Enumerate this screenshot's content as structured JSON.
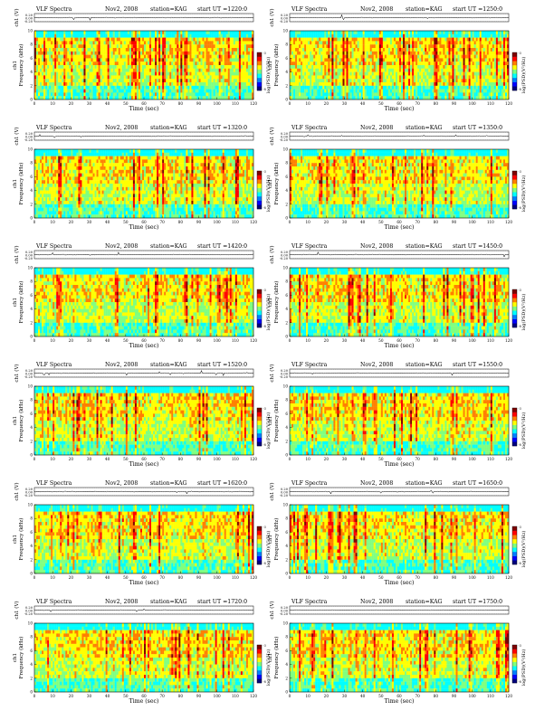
{
  "page": {
    "background": "#ffffff"
  },
  "labels": {
    "title": "VLF Spectra",
    "date": "Nov2, 2008",
    "station": "station=KAG",
    "start_prefix": "start  UT  =",
    "ch_label": "ch1 (V)",
    "freq_label": "Frequency  (kHz)",
    "ch_tag": "ch1",
    "xlabel": "Time  (sec)",
    "cbar_label": "log(PSD)(V²/Hz)",
    "cbar_top_tick": "-3",
    "cbar_bottom_tick": "-8"
  },
  "colors": {
    "spectro_scale": [
      "#00007f",
      "#0000ff",
      "#007fff",
      "#00ffff",
      "#7fff7f",
      "#ffff00",
      "#ff7f00",
      "#ff0000",
      "#7f0000"
    ],
    "text": "#000000",
    "trace": "#000000"
  },
  "chart_data": [
    {
      "type": "heatmap",
      "start_ut": "1220:0",
      "x_ticks": [
        "0",
        "10",
        "20",
        "30",
        "40",
        "50",
        "60",
        "70",
        "80",
        "90",
        "100",
        "110",
        "120"
      ],
      "y_ticks": [
        "0",
        "2",
        "4",
        "6",
        "8",
        "10"
      ],
      "top_ticks": [
        "0.20",
        "0.00",
        "-0.20"
      ],
      "xlim": [
        0,
        120
      ],
      "ylim": [
        0,
        10
      ]
    },
    {
      "type": "heatmap",
      "start_ut": "1250:0",
      "x_ticks": [
        "0",
        "10",
        "20",
        "30",
        "40",
        "50",
        "60",
        "70",
        "80",
        "90",
        "100",
        "110",
        "120"
      ],
      "y_ticks": [
        "0",
        "2",
        "4",
        "6",
        "8",
        "10"
      ],
      "top_ticks": [
        "0.20",
        "0.00",
        "-0.20"
      ],
      "xlim": [
        0,
        120
      ],
      "ylim": [
        0,
        10
      ]
    },
    {
      "type": "heatmap",
      "start_ut": "1320:0",
      "x_ticks": [
        "0",
        "10",
        "20",
        "30",
        "40",
        "50",
        "60",
        "70",
        "80",
        "90",
        "100",
        "110",
        "120"
      ],
      "y_ticks": [
        "0",
        "2",
        "4",
        "6",
        "8",
        "10"
      ],
      "top_ticks": [
        "0.20",
        "0.00",
        "-0.20"
      ],
      "xlim": [
        0,
        120
      ],
      "ylim": [
        0,
        10
      ]
    },
    {
      "type": "heatmap",
      "start_ut": "1350:0",
      "x_ticks": [
        "0",
        "10",
        "20",
        "30",
        "40",
        "50",
        "60",
        "70",
        "80",
        "90",
        "100",
        "110",
        "120"
      ],
      "y_ticks": [
        "0",
        "2",
        "4",
        "6",
        "8",
        "10"
      ],
      "top_ticks": [
        "0.20",
        "0.00",
        "-0.20"
      ],
      "xlim": [
        0,
        120
      ],
      "ylim": [
        0,
        10
      ]
    },
    {
      "type": "heatmap",
      "start_ut": "1420:0",
      "x_ticks": [
        "0",
        "10",
        "20",
        "30",
        "40",
        "50",
        "60",
        "70",
        "80",
        "90",
        "100",
        "110",
        "120"
      ],
      "y_ticks": [
        "0",
        "2",
        "4",
        "6",
        "8",
        "10"
      ],
      "top_ticks": [
        "0.20",
        "0.00",
        "-0.20"
      ],
      "xlim": [
        0,
        120
      ],
      "ylim": [
        0,
        10
      ]
    },
    {
      "type": "heatmap",
      "start_ut": "1450:0",
      "x_ticks": [
        "0",
        "10",
        "20",
        "30",
        "40",
        "50",
        "60",
        "70",
        "80",
        "90",
        "100",
        "110",
        "120"
      ],
      "y_ticks": [
        "0",
        "2",
        "4",
        "6",
        "8",
        "10"
      ],
      "top_ticks": [
        "0.20",
        "0.00",
        "-0.20"
      ],
      "xlim": [
        0,
        120
      ],
      "ylim": [
        0,
        10
      ]
    },
    {
      "type": "heatmap",
      "start_ut": "1520:0",
      "x_ticks": [
        "0",
        "10",
        "20",
        "30",
        "40",
        "50",
        "60",
        "70",
        "80",
        "90",
        "100",
        "110",
        "120"
      ],
      "y_ticks": [
        "0",
        "2",
        "4",
        "6",
        "8",
        "10"
      ],
      "top_ticks": [
        "0.20",
        "0.00",
        "-0.20"
      ],
      "xlim": [
        0,
        120
      ],
      "ylim": [
        0,
        10
      ]
    },
    {
      "type": "heatmap",
      "start_ut": "1550:0",
      "x_ticks": [
        "0",
        "10",
        "20",
        "30",
        "40",
        "50",
        "60",
        "70",
        "80",
        "90",
        "100",
        "110",
        "120"
      ],
      "y_ticks": [
        "0",
        "2",
        "4",
        "6",
        "8",
        "10"
      ],
      "top_ticks": [
        "0.20",
        "0.00",
        "-0.20"
      ],
      "xlim": [
        0,
        120
      ],
      "ylim": [
        0,
        10
      ]
    },
    {
      "type": "heatmap",
      "start_ut": "1620:0",
      "x_ticks": [
        "0",
        "10",
        "20",
        "30",
        "40",
        "50",
        "60",
        "70",
        "80",
        "90",
        "100",
        "110",
        "120"
      ],
      "y_ticks": [
        "0",
        "2",
        "4",
        "6",
        "8",
        "10"
      ],
      "top_ticks": [
        "0.20",
        "0.00",
        "-0.20"
      ],
      "xlim": [
        0,
        120
      ],
      "ylim": [
        0,
        10
      ]
    },
    {
      "type": "heatmap",
      "start_ut": "1650:0",
      "x_ticks": [
        "0",
        "10",
        "20",
        "30",
        "40",
        "50",
        "60",
        "70",
        "80",
        "90",
        "100",
        "110",
        "120"
      ],
      "y_ticks": [
        "0",
        "2",
        "4",
        "6",
        "8",
        "10"
      ],
      "top_ticks": [
        "0.20",
        "0.00",
        "-0.20"
      ],
      "xlim": [
        0,
        120
      ],
      "ylim": [
        0,
        10
      ]
    },
    {
      "type": "heatmap",
      "start_ut": "1720:0",
      "x_ticks": [
        "0",
        "10",
        "20",
        "30",
        "40",
        "50",
        "60",
        "70",
        "80",
        "90",
        "100",
        "110",
        "120"
      ],
      "y_ticks": [
        "0",
        "2",
        "4",
        "6",
        "8",
        "10"
      ],
      "top_ticks": [
        "0.20",
        "0.00",
        "-0.20"
      ],
      "xlim": [
        0,
        120
      ],
      "ylim": [
        0,
        10
      ]
    },
    {
      "type": "heatmap",
      "start_ut": "1750:0",
      "x_ticks": [
        "0",
        "10",
        "20",
        "30",
        "40",
        "50",
        "60",
        "70",
        "80",
        "90",
        "100",
        "110",
        "120"
      ],
      "y_ticks": [
        "0",
        "2",
        "4",
        "6",
        "8",
        "10"
      ],
      "top_ticks": [
        "0.20",
        "0.00",
        "-0.20"
      ],
      "xlim": [
        0,
        120
      ],
      "ylim": [
        0,
        10
      ]
    }
  ]
}
